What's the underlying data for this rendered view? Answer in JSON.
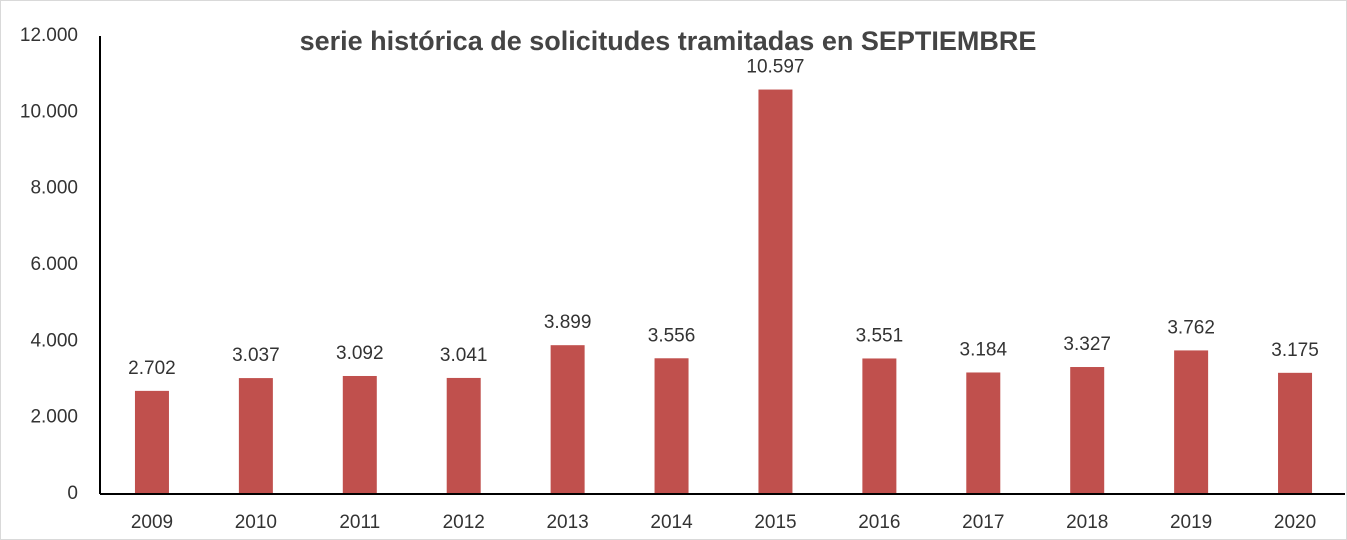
{
  "chart_data": {
    "type": "bar",
    "title": "serie histórica de solicitudes tramitadas en SEPTIEMBRE",
    "categories": [
      "2009",
      "2010",
      "2011",
      "2012",
      "2013",
      "2014",
      "2015",
      "2016",
      "2017",
      "2018",
      "2019",
      "2020"
    ],
    "values": [
      2702,
      3037,
      3092,
      3041,
      3899,
      3556,
      10597,
      3551,
      3184,
      3327,
      3762,
      3175
    ],
    "value_labels": [
      "2.702",
      "3.037",
      "3.092",
      "3.041",
      "3.899",
      "3.556",
      "10.597",
      "3.551",
      "3.184",
      "3.327",
      "3.762",
      "3.175"
    ],
    "color": "#c0504d",
    "ylim": [
      0,
      12000
    ],
    "yticks": [
      0,
      {
        "value": 2000,
        "label": "2.000"
      },
      {
        "value": 4000,
        "label": "4.000"
      },
      {
        "value": 6000,
        "label": "6.000"
      },
      {
        "value": 8000,
        "label": "8.000"
      },
      {
        "value": 10000,
        "label": "10.000"
      },
      {
        "value": 12000,
        "label": "12.000"
      }
    ],
    "grid": false
  }
}
